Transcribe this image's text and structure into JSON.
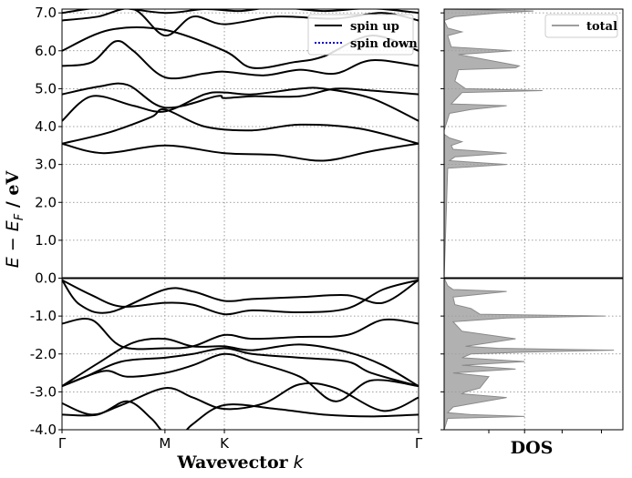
{
  "chart_data": [
    {
      "type": "line",
      "panel": "band-structure",
      "xlabel": "Wavevector",
      "xlabel_symbol": "k",
      "ylabel_symbol": "E − E",
      "ylabel_sub": "F",
      "ylabel_unit": " / eV",
      "ylim": [
        -4.0,
        7.1
      ],
      "yticks": [
        -4.0,
        -3.0,
        -2.0,
        -1.0,
        0.0,
        1.0,
        2.0,
        3.0,
        4.0,
        5.0,
        6.0,
        7.0
      ],
      "ytick_labels": [
        "-4.0",
        "-3.0",
        "-2.0",
        "-1.0",
        "0.0",
        "1.0",
        "2.0",
        "3.0",
        "4.0",
        "5.0",
        "6.0",
        "7.0"
      ],
      "xlim": [
        0,
        3
      ],
      "high_symmetry_points": [
        {
          "label": "Γ",
          "x": 0
        },
        {
          "label": "M",
          "x": 0.866
        },
        {
          "label": "K",
          "x": 1.366
        },
        {
          "label": "Γ",
          "x": 3
        }
      ],
      "fermi_level": 0.0,
      "grid": true,
      "legend": {
        "position": "top-right",
        "entries": [
          {
            "label": "spin up",
            "color": "#000000",
            "style": "solid"
          },
          {
            "label": "spin down",
            "color": "#0000cc",
            "style": "dotted"
          }
        ]
      },
      "series": [
        {
          "x": [
            0,
            0.35,
            0.866,
            1.366,
            1.8,
            2.2,
            2.6,
            3
          ],
          "y": [
            3.55,
            3.3,
            3.5,
            3.3,
            3.25,
            3.1,
            3.35,
            3.55
          ]
        },
        {
          "x": [
            0,
            0.4,
            0.75,
            0.866,
            1.2,
            1.6,
            2.0,
            2.5,
            3
          ],
          "y": [
            3.55,
            3.85,
            4.25,
            4.45,
            4.0,
            3.9,
            4.05,
            3.95,
            3.55
          ]
        },
        {
          "x": [
            0,
            0.25,
            0.6,
            0.866,
            1.2,
            1.366,
            1.6,
            2.0,
            2.2,
            2.6,
            3
          ],
          "y": [
            4.15,
            4.8,
            4.55,
            4.4,
            4.85,
            4.9,
            4.85,
            5.0,
            5.0,
            4.75,
            4.15
          ]
        },
        {
          "x": [
            0,
            0.3,
            0.55,
            0.866,
            1.3,
            1.366,
            1.6,
            2.0,
            2.3,
            2.6,
            3
          ],
          "y": [
            4.85,
            5.05,
            5.1,
            4.5,
            4.8,
            4.75,
            4.8,
            4.8,
            5.0,
            4.95,
            4.85
          ]
        },
        {
          "x": [
            0,
            0.25,
            0.45,
            0.6,
            0.866,
            1.2,
            1.366,
            1.7,
            2.0,
            2.3,
            2.6,
            3
          ],
          "y": [
            5.6,
            5.7,
            6.25,
            6.0,
            5.3,
            5.4,
            5.45,
            5.35,
            5.5,
            5.4,
            5.75,
            5.6
          ]
        },
        {
          "x": [
            0,
            0.4,
            0.866,
            1.366,
            1.6,
            1.95,
            2.2,
            2.6,
            3
          ],
          "y": [
            6.0,
            6.55,
            6.55,
            6.0,
            5.55,
            5.7,
            5.85,
            6.4,
            6.0
          ]
        },
        {
          "x": [
            0,
            0.3,
            0.6,
            0.866,
            1.1,
            1.366,
            1.8,
            2.3,
            2.7,
            3
          ],
          "y": [
            6.8,
            6.9,
            7.1,
            6.4,
            6.9,
            6.7,
            6.9,
            6.85,
            7.0,
            6.8
          ]
        },
        {
          "x": [
            0,
            0.4,
            0.866,
            1.2,
            1.5,
            1.8,
            2.2,
            2.6,
            3
          ],
          "y": [
            7.0,
            7.15,
            7.0,
            7.1,
            7.05,
            7.15,
            7.05,
            7.12,
            7.0
          ]
        },
        {
          "x": [
            0,
            0.15,
            0.4,
            0.866,
            1.1,
            1.366,
            1.6,
            2.0,
            2.4,
            2.7,
            3
          ],
          "y": [
            -0.05,
            -0.7,
            -0.9,
            -0.3,
            -0.35,
            -0.6,
            -0.55,
            -0.5,
            -0.45,
            -0.65,
            -0.05
          ]
        },
        {
          "x": [
            0,
            0.25,
            0.5,
            0.866,
            1.1,
            1.366,
            1.6,
            2.0,
            2.4,
            2.7,
            3
          ],
          "y": [
            -0.05,
            -0.45,
            -0.75,
            -0.65,
            -0.7,
            -0.95,
            -0.85,
            -0.9,
            -0.8,
            -0.3,
            -0.05
          ]
        },
        {
          "x": [
            0,
            0.25,
            0.5,
            0.866,
            1.1,
            1.366,
            1.6,
            2.0,
            2.4,
            2.7,
            3
          ],
          "y": [
            -1.2,
            -1.1,
            -1.8,
            -1.85,
            -1.8,
            -1.5,
            -1.6,
            -1.55,
            -1.5,
            -1.1,
            -1.2
          ]
        },
        {
          "x": [
            0,
            0.3,
            0.6,
            0.866,
            1.1,
            1.366,
            1.6,
            2.0,
            2.4,
            2.7,
            3
          ],
          "y": [
            -2.85,
            -2.25,
            -1.7,
            -1.6,
            -1.8,
            -1.8,
            -1.9,
            -1.75,
            -1.95,
            -2.3,
            -2.85
          ]
        },
        {
          "x": [
            0,
            0.2,
            0.5,
            0.866,
            1.1,
            1.366,
            1.6,
            2.0,
            2.4,
            2.6,
            3
          ],
          "y": [
            -2.85,
            -2.6,
            -2.2,
            -2.1,
            -2.0,
            -1.85,
            -2.0,
            -2.1,
            -2.2,
            -2.5,
            -2.85
          ]
        },
        {
          "x": [
            0,
            0.35,
            0.55,
            0.866,
            1.1,
            1.366,
            1.6,
            2.0,
            2.3,
            2.6,
            3
          ],
          "y": [
            -2.85,
            -2.45,
            -2.6,
            -2.5,
            -2.3,
            -2.0,
            -2.2,
            -2.6,
            -3.25,
            -2.7,
            -2.85
          ]
        },
        {
          "x": [
            0,
            0.25,
            0.5,
            0.866,
            1.1,
            1.366,
            1.7,
            2.0,
            2.3,
            2.7,
            3
          ],
          "y": [
            -3.3,
            -3.6,
            -3.35,
            -2.9,
            -3.15,
            -3.45,
            -3.3,
            -2.8,
            -2.9,
            -3.5,
            -3.15
          ]
        },
        {
          "x": [
            0,
            0.3,
            0.55,
            0.75,
            0.866,
            1.0,
            1.1,
            1.366,
            1.8,
            2.2,
            2.6,
            3
          ],
          "y": [
            -3.6,
            -3.6,
            -3.25,
            -3.7,
            -4.1,
            -4.15,
            -3.85,
            -3.35,
            -3.45,
            -3.6,
            -3.65,
            -3.6
          ]
        }
      ]
    },
    {
      "type": "area",
      "panel": "density-of-states",
      "xlabel": "DOS",
      "ylim": [
        -4.0,
        7.1
      ],
      "xlim": [
        0,
        1
      ],
      "grid": true,
      "legend": {
        "position": "top-right",
        "entries": [
          {
            "label": "total",
            "color": "#9e9e9e"
          }
        ]
      },
      "fermi_level": 0.0,
      "series": [
        {
          "name": "total",
          "energy": [
            -4.0,
            -3.7,
            -3.65,
            -3.6,
            -3.55,
            -3.4,
            -3.15,
            -3.05,
            -3.0,
            -2.9,
            -2.6,
            -2.5,
            -2.4,
            -2.3,
            -2.2,
            -2.1,
            -2.0,
            -1.95,
            -1.9,
            -1.85,
            -1.8,
            -1.6,
            -1.4,
            -1.15,
            -1.05,
            -1.0,
            -0.95,
            -0.8,
            -0.7,
            -0.5,
            -0.35,
            -0.3,
            -0.2,
            0.0,
            0.0,
            2.9,
            3.0,
            3.1,
            3.2,
            3.3,
            3.4,
            3.5,
            3.6,
            3.7,
            3.8,
            3.9,
            4.35,
            4.45,
            4.55,
            4.6,
            4.7,
            4.9,
            4.95,
            5.0,
            5.2,
            5.5,
            5.55,
            5.6,
            5.9,
            6.0,
            6.1,
            6.4,
            6.5,
            6.6,
            6.8,
            6.9,
            7.0,
            7.05,
            7.1
          ],
          "dos": [
            0,
            0.02,
            0.45,
            0.15,
            0.02,
            0.05,
            0.35,
            0.1,
            0.12,
            0.2,
            0.25,
            0.05,
            0.4,
            0.1,
            0.45,
            0.1,
            0.15,
            0.45,
            0.95,
            0.3,
            0.12,
            0.4,
            0.1,
            0.05,
            0.35,
            0.9,
            0.2,
            0.15,
            0.06,
            0.05,
            0.35,
            0.05,
            0.02,
            0,
            0,
            0.02,
            0.35,
            0.03,
            0.06,
            0.35,
            0.05,
            0.04,
            0.1,
            0.03,
            0.0,
            0.0,
            0.03,
            0.15,
            0.35,
            0.04,
            0.06,
            0.1,
            0.55,
            0.12,
            0.06,
            0.08,
            0.4,
            0.42,
            0.08,
            0.38,
            0.04,
            0.02,
            0.1,
            0.02,
            0.0,
            0.06,
            0.3,
            0.5,
            0.02
          ]
        }
      ]
    }
  ]
}
